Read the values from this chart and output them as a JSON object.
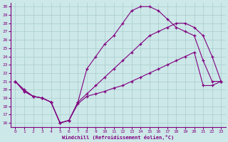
{
  "xlabel": "Windchill (Refroidissement éolien,°C)",
  "xlim": [
    -0.5,
    23.5
  ],
  "ylim": [
    15.5,
    30.5
  ],
  "xticks": [
    0,
    1,
    2,
    3,
    4,
    5,
    6,
    7,
    8,
    9,
    10,
    11,
    12,
    13,
    14,
    15,
    16,
    17,
    18,
    19,
    20,
    21,
    22,
    23
  ],
  "yticks": [
    16,
    17,
    18,
    19,
    20,
    21,
    22,
    23,
    24,
    25,
    26,
    27,
    28,
    29,
    30
  ],
  "bg_color": "#cce8e8",
  "line_color": "#800080",
  "grid_color": "#aacccc",
  "line1_x": [
    0,
    1,
    2,
    3,
    4,
    5,
    6,
    7,
    8,
    9,
    10,
    11,
    12,
    13,
    14,
    15,
    16,
    17,
    18,
    19,
    20,
    21,
    22,
    23
  ],
  "line1_y": [
    21.0,
    20.0,
    19.2,
    19.0,
    18.5,
    16.0,
    16.3,
    18.3,
    19.2,
    19.5,
    19.8,
    20.2,
    20.5,
    21.0,
    21.5,
    22.0,
    22.5,
    23.0,
    23.5,
    24.0,
    24.5,
    20.5,
    20.5,
    21.0
  ],
  "line2_x": [
    0,
    1,
    2,
    3,
    4,
    5,
    6,
    7,
    8,
    9,
    10,
    11,
    12,
    13,
    14,
    15,
    16,
    17,
    18,
    19,
    20,
    21,
    22,
    23
  ],
  "line2_y": [
    21.0,
    19.8,
    19.2,
    19.0,
    18.5,
    16.0,
    16.3,
    18.5,
    22.5,
    24.0,
    25.5,
    26.5,
    28.0,
    29.5,
    30.0,
    30.0,
    29.5,
    28.5,
    27.5,
    27.0,
    26.5,
    23.5,
    21.0,
    21.0
  ],
  "line3_x": [
    0,
    1,
    2,
    3,
    4,
    5,
    6,
    7,
    8,
    9,
    10,
    11,
    12,
    13,
    14,
    15,
    16,
    17,
    18,
    19,
    20,
    21,
    22,
    23
  ],
  "line3_y": [
    21.0,
    19.8,
    19.2,
    19.0,
    18.5,
    16.0,
    16.3,
    18.5,
    19.5,
    20.5,
    21.5,
    22.5,
    23.5,
    24.5,
    25.5,
    26.5,
    27.0,
    27.5,
    28.0,
    28.0,
    27.5,
    26.5,
    24.0,
    21.0
  ]
}
